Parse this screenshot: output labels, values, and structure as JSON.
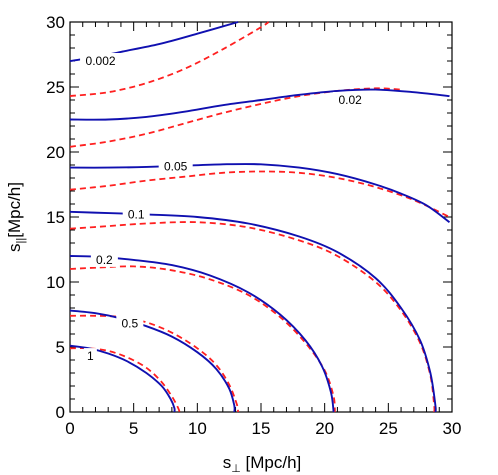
{
  "chart_data": {
    "type": "line",
    "xlabel": "s⊥ [Mpc/h]",
    "xlabel_main": "s",
    "xlabel_sub": "⊥",
    "xlabel_unit": " [Mpc/h]",
    "ylabel": "s|| [Mpc/h]",
    "ylabel_main": "s",
    "ylabel_sub": "||",
    "ylabel_unit": "[Mpc/h]",
    "xlim": [
      0,
      30
    ],
    "ylim": [
      0,
      30
    ],
    "xticks": [
      0,
      5,
      10,
      15,
      20,
      25,
      30
    ],
    "yticks": [
      0,
      5,
      10,
      15,
      20,
      25,
      30
    ],
    "grid": false,
    "legend": "none",
    "colors": {
      "solid": "#1010b0",
      "dashed": "#ff2020"
    },
    "series": [
      {
        "style": "solid",
        "contours": [
          {
            "level": "0.002",
            "points": [
              [
                0,
                27.0
              ],
              [
                2,
                27.3
              ],
              [
                4,
                27.7
              ],
              [
                7,
                28.3
              ],
              [
                10,
                29.1
              ],
              [
                13.2,
                30.0
              ]
            ]
          },
          {
            "level": "0.02",
            "points": [
              [
                0,
                22.5
              ],
              [
                3,
                22.5
              ],
              [
                6,
                22.7
              ],
              [
                9,
                23.1
              ],
              [
                12,
                23.6
              ],
              [
                15,
                24.0
              ],
              [
                18,
                24.4
              ],
              [
                21,
                24.7
              ],
              [
                24,
                24.8
              ],
              [
                27,
                24.6
              ],
              [
                29.8,
                24.3
              ]
            ]
          },
          {
            "level": "0.05",
            "points": [
              [
                0,
                18.8
              ],
              [
                3,
                18.8
              ],
              [
                6,
                18.85
              ],
              [
                9,
                18.95
              ],
              [
                12,
                19.05
              ],
              [
                15,
                19.05
              ],
              [
                18,
                18.8
              ],
              [
                21,
                18.3
              ],
              [
                24,
                17.5
              ],
              [
                26,
                16.8
              ],
              [
                28,
                15.9
              ],
              [
                29.8,
                14.6
              ]
            ]
          },
          {
            "level": "0.1",
            "points": [
              [
                0,
                15.4
              ],
              [
                3,
                15.3
              ],
              [
                6,
                15.2
              ],
              [
                10,
                15.0
              ],
              [
                14,
                14.5
              ],
              [
                18,
                13.5
              ],
              [
                21,
                12.3
              ],
              [
                24,
                10.3
              ],
              [
                26,
                8.0
              ],
              [
                27.5,
                5.5
              ],
              [
                28.3,
                3.0
              ],
              [
                28.7,
                0.5
              ],
              [
                28.7,
                0
              ]
            ]
          },
          {
            "level": "0.2",
            "points": [
              [
                0,
                12.0
              ],
              [
                2,
                11.95
              ],
              [
                5,
                11.7
              ],
              [
                8,
                11.3
              ],
              [
                11,
                10.5
              ],
              [
                14,
                9.2
              ],
              [
                16.5,
                7.5
              ],
              [
                18.5,
                5.5
              ],
              [
                19.8,
                3.5
              ],
              [
                20.5,
                1.5
              ],
              [
                20.7,
                0
              ]
            ]
          },
          {
            "level": "0.5",
            "points": [
              [
                0,
                7.8
              ],
              [
                2,
                7.6
              ],
              [
                4,
                7.2
              ],
              [
                6,
                6.6
              ],
              [
                8,
                5.8
              ],
              [
                10,
                4.6
              ],
              [
                11.5,
                3.3
              ],
              [
                12.5,
                1.8
              ],
              [
                12.9,
                0.5
              ],
              [
                12.9,
                0
              ]
            ]
          },
          {
            "level": "1",
            "points": [
              [
                0,
                5.1
              ],
              [
                1.5,
                4.9
              ],
              [
                3,
                4.5
              ],
              [
                4.5,
                3.9
              ],
              [
                6,
                3.0
              ],
              [
                7.2,
                2.0
              ],
              [
                7.9,
                1.0
              ],
              [
                8.2,
                0.3
              ],
              [
                8.2,
                0
              ]
            ]
          }
        ]
      },
      {
        "style": "dashed",
        "contours": [
          {
            "level": "0.002",
            "points": [
              [
                0,
                24.3
              ],
              [
                3,
                24.6
              ],
              [
                6,
                25.3
              ],
              [
                9,
                26.4
              ],
              [
                12,
                27.9
              ],
              [
                15,
                29.6
              ],
              [
                15.6,
                30.0
              ]
            ]
          },
          {
            "level": "0.02",
            "points": [
              [
                0,
                20.4
              ],
              [
                3,
                20.8
              ],
              [
                6,
                21.4
              ],
              [
                9,
                22.2
              ],
              [
                12,
                23.0
              ],
              [
                15,
                23.7
              ],
              [
                18,
                24.3
              ],
              [
                21,
                24.7
              ],
              [
                24,
                24.9
              ],
              [
                26,
                24.8
              ]
            ]
          },
          {
            "level": "0.05",
            "points": [
              [
                0,
                17.1
              ],
              [
                3,
                17.4
              ],
              [
                6,
                17.8
              ],
              [
                9,
                18.1
              ],
              [
                12,
                18.4
              ],
              [
                15,
                18.5
              ],
              [
                18,
                18.4
              ],
              [
                21,
                18.0
              ],
              [
                24,
                17.3
              ],
              [
                27,
                16.3
              ],
              [
                29.8,
                15.0
              ]
            ]
          },
          {
            "level": "0.1",
            "points": [
              [
                0,
                14.1
              ],
              [
                3,
                14.3
              ],
              [
                6,
                14.5
              ],
              [
                10,
                14.6
              ],
              [
                14,
                14.2
              ],
              [
                18,
                13.2
              ],
              [
                21,
                12.0
              ],
              [
                24,
                10.0
              ],
              [
                26,
                7.8
              ],
              [
                27.5,
                5.3
              ],
              [
                28.3,
                2.8
              ],
              [
                28.6,
                0.5
              ],
              [
                28.6,
                0
              ]
            ]
          },
          {
            "level": "0.2",
            "points": [
              [
                0,
                11.0
              ],
              [
                2,
                11.1
              ],
              [
                5,
                11.2
              ],
              [
                8,
                10.9
              ],
              [
                11,
                10.2
              ],
              [
                14,
                9.0
              ],
              [
                16.5,
                7.3
              ],
              [
                18.5,
                5.3
              ],
              [
                20,
                3.2
              ],
              [
                20.7,
                1.2
              ],
              [
                20.8,
                0
              ]
            ]
          },
          {
            "level": "0.5",
            "points": [
              [
                0,
                7.4
              ],
              [
                2,
                7.4
              ],
              [
                4,
                7.3
              ],
              [
                6,
                6.9
              ],
              [
                8,
                6.1
              ],
              [
                10,
                4.9
              ],
              [
                11.5,
                3.6
              ],
              [
                12.5,
                2.1
              ],
              [
                13.1,
                0.6
              ],
              [
                13.2,
                0
              ]
            ]
          },
          {
            "level": "1",
            "points": [
              [
                0,
                4.9
              ],
              [
                1.5,
                4.9
              ],
              [
                3,
                4.7
              ],
              [
                4.5,
                4.2
              ],
              [
                6,
                3.4
              ],
              [
                7.2,
                2.3
              ],
              [
                8.0,
                1.2
              ],
              [
                8.5,
                0.3
              ],
              [
                8.6,
                0
              ]
            ]
          }
        ]
      }
    ],
    "contour_labels": [
      {
        "text": "0.002",
        "x": 2.4,
        "y": 27.0
      },
      {
        "text": "0.02",
        "x": 22.0,
        "y": 24.0
      },
      {
        "text": "0.05",
        "x": 8.3,
        "y": 18.9
      },
      {
        "text": "0.1",
        "x": 5.2,
        "y": 15.2
      },
      {
        "text": "0.2",
        "x": 2.7,
        "y": 11.7
      },
      {
        "text": "0.5",
        "x": 4.7,
        "y": 6.8
      },
      {
        "text": "1",
        "x": 1.6,
        "y": 4.3
      }
    ]
  }
}
